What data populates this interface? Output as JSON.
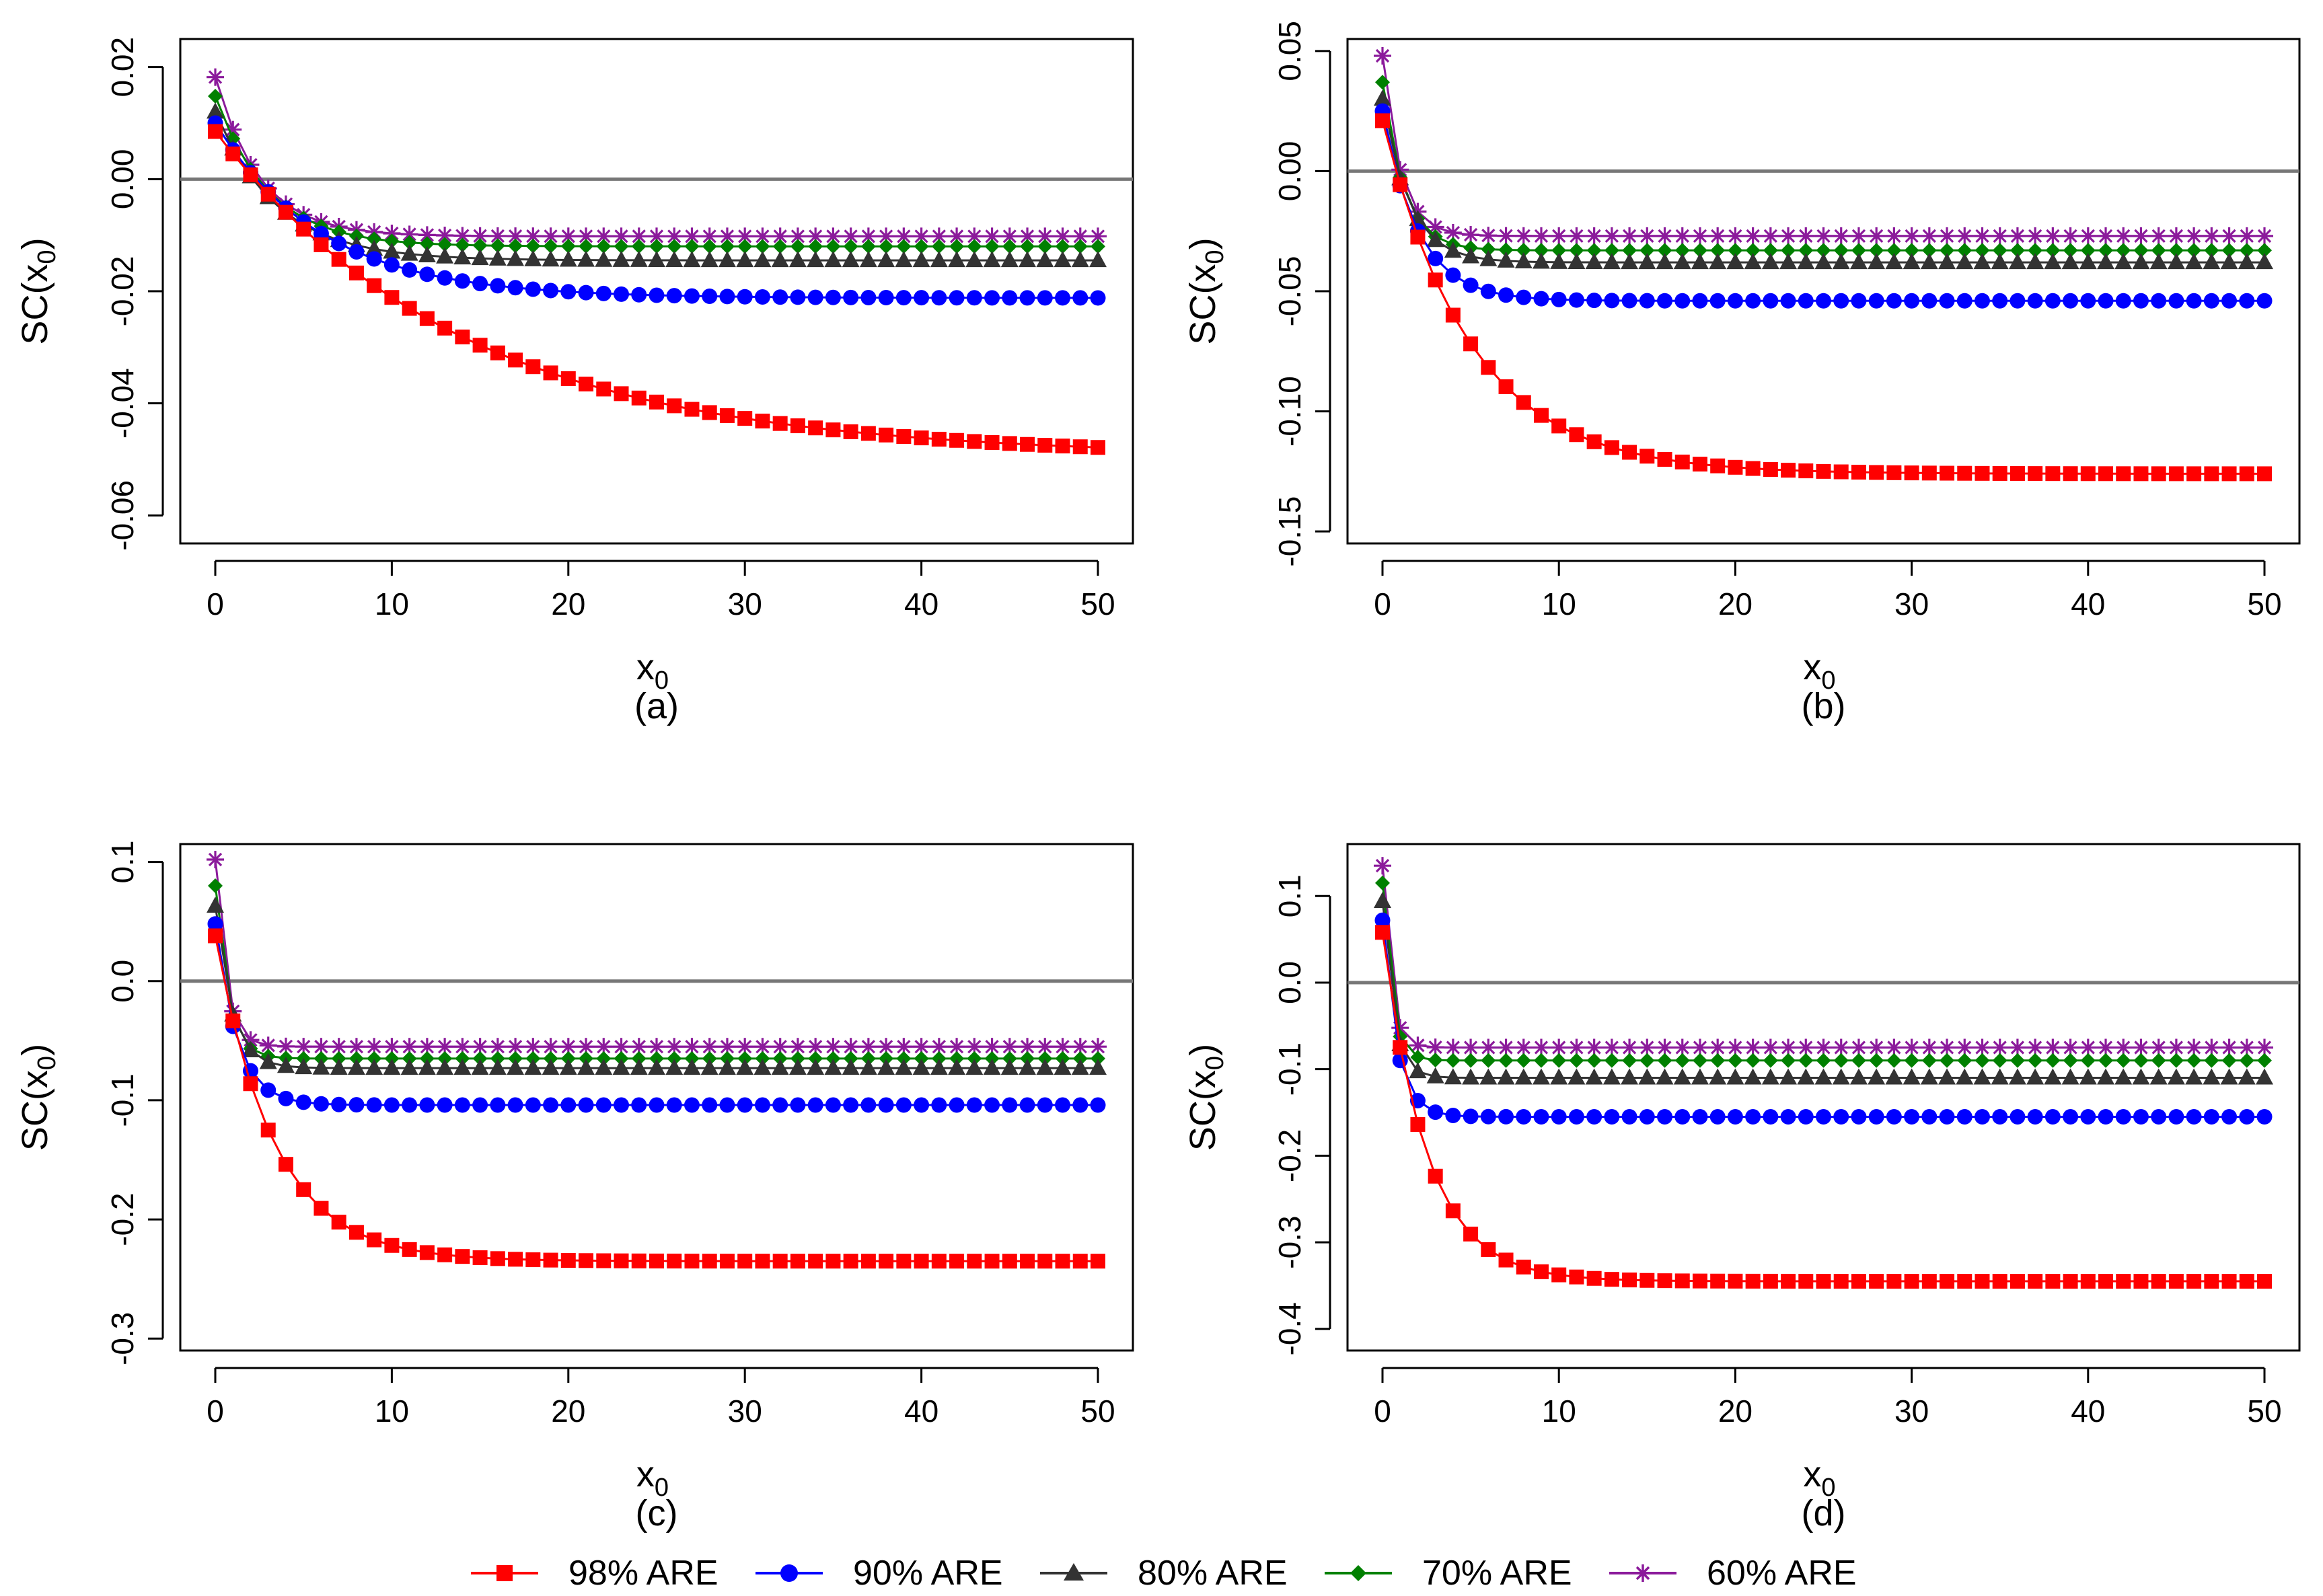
{
  "legend": {
    "items": [
      {
        "label": "98% ARE",
        "color": "#ff0000",
        "marker": "square"
      },
      {
        "label": "90% ARE",
        "color": "#0000ff",
        "marker": "circle"
      },
      {
        "label": "80% ARE",
        "color": "#333333",
        "marker": "triangle"
      },
      {
        "label": "70% ARE",
        "color": "#008000",
        "marker": "diamond"
      },
      {
        "label": "60% ARE",
        "color": "#8b1a9b",
        "marker": "asterisk"
      }
    ]
  },
  "chart_data": [
    {
      "type": "line",
      "caption": "(a)",
      "xlabel": "x",
      "xlabel_sub": "0",
      "ylabel": "SC(x",
      "ylabel_sub": "0",
      "ylabel_close": ")",
      "xlim": [
        0,
        50
      ],
      "ylim": [
        -0.065,
        0.025
      ],
      "xticks": [
        0,
        10,
        20,
        30,
        40,
        50
      ],
      "xtick_labels": [
        "0",
        "10",
        "20",
        "30",
        "40",
        "50"
      ],
      "yticks": [
        0.02,
        0.0,
        -0.02,
        -0.04,
        -0.06
      ],
      "ytick_labels": [
        "0.02",
        "0.00",
        "-0.02",
        "-0.04",
        "-0.06"
      ],
      "hline": 0,
      "series": [
        {
          "name": "98% ARE",
          "start": 0.0085,
          "end": -0.0495,
          "tau": 14
        },
        {
          "name": "90% ARE",
          "start": 0.01,
          "end": -0.0212,
          "tau": 6
        },
        {
          "name": "80% ARE",
          "start": 0.012,
          "end": -0.0145,
          "tau": 3.5
        },
        {
          "name": "70% ARE",
          "start": 0.0148,
          "end": -0.012,
          "tau": 3
        },
        {
          "name": "60% ARE",
          "start": 0.0182,
          "end": -0.0102,
          "tau": 2.5
        }
      ]
    },
    {
      "type": "line",
      "caption": "(b)",
      "xlabel": "x",
      "xlabel_sub": "0",
      "ylabel": "SC(x",
      "ylabel_sub": "0",
      "ylabel_close": ")",
      "xlim": [
        0,
        50
      ],
      "ylim": [
        -0.155,
        0.055
      ],
      "xticks": [
        0,
        10,
        20,
        30,
        40,
        50
      ],
      "xtick_labels": [
        "0",
        "10",
        "20",
        "30",
        "40",
        "50"
      ],
      "yticks": [
        0.05,
        0.0,
        -0.05,
        -0.1,
        -0.15
      ],
      "ytick_labels": [
        "0.05",
        "0.00",
        "-0.05",
        "-0.10",
        "-0.15"
      ],
      "hline": 0,
      "series": [
        {
          "name": "98% ARE",
          "start": 0.021,
          "end": -0.126,
          "tau": 5
        },
        {
          "name": "90% ARE",
          "start": 0.025,
          "end": -0.054,
          "tau": 2
        },
        {
          "name": "80% ARE",
          "start": 0.03,
          "end": -0.038,
          "tau": 1.5
        },
        {
          "name": "70% ARE",
          "start": 0.037,
          "end": -0.033,
          "tau": 1.2
        },
        {
          "name": "60% ARE",
          "start": 0.048,
          "end": -0.027,
          "tau": 1
        }
      ]
    },
    {
      "type": "line",
      "caption": "(c)",
      "xlabel": "x",
      "xlabel_sub": "0",
      "ylabel": "SC(x",
      "ylabel_sub": "0",
      "ylabel_close": ")",
      "xlim": [
        0,
        50
      ],
      "ylim": [
        -0.31,
        0.115
      ],
      "xticks": [
        0,
        10,
        20,
        30,
        40,
        50
      ],
      "xtick_labels": [
        "0",
        "10",
        "20",
        "30",
        "40",
        "50"
      ],
      "yticks": [
        0.1,
        0.0,
        -0.1,
        -0.2,
        -0.3
      ],
      "ytick_labels": [
        "0.1",
        "0.0",
        "-0.1",
        "-0.2",
        "-0.3"
      ],
      "hline": 0,
      "series": [
        {
          "name": "98% ARE",
          "start": 0.038,
          "end": -0.235,
          "tau": 3.3
        },
        {
          "name": "90% ARE",
          "start": 0.048,
          "end": -0.104,
          "tau": 1.2
        },
        {
          "name": "80% ARE",
          "start": 0.063,
          "end": -0.073,
          "tau": 0.9
        },
        {
          "name": "70% ARE",
          "start": 0.08,
          "end": -0.065,
          "tau": 0.7
        },
        {
          "name": "60% ARE",
          "start": 0.102,
          "end": -0.055,
          "tau": 0.6
        }
      ]
    },
    {
      "type": "line",
      "caption": "(d)",
      "xlabel": "x",
      "xlabel_sub": "0",
      "ylabel": "SC(x",
      "ylabel_sub": "0",
      "ylabel_close": ")",
      "xlim": [
        0,
        50
      ],
      "ylim": [
        -0.425,
        0.16
      ],
      "xticks": [
        0,
        10,
        20,
        30,
        40,
        50
      ],
      "xtick_labels": [
        "0",
        "10",
        "20",
        "30",
        "40",
        "50"
      ],
      "yticks": [
        0.1,
        0.0,
        -0.1,
        -0.2,
        -0.3,
        -0.4
      ],
      "ytick_labels": [
        "0.1",
        "0.0",
        "-0.1",
        "-0.2",
        "-0.3",
        "-0.4"
      ],
      "hline": 0,
      "series": [
        {
          "name": "98% ARE",
          "start": 0.058,
          "end": -0.345,
          "tau": 2.5
        },
        {
          "name": "90% ARE",
          "start": 0.072,
          "end": -0.155,
          "tau": 0.8
        },
        {
          "name": "80% ARE",
          "start": 0.094,
          "end": -0.11,
          "tau": 0.6
        },
        {
          "name": "70% ARE",
          "start": 0.115,
          "end": -0.09,
          "tau": 0.5
        },
        {
          "name": "60% ARE",
          "start": 0.135,
          "end": -0.075,
          "tau": 0.45
        }
      ]
    }
  ]
}
